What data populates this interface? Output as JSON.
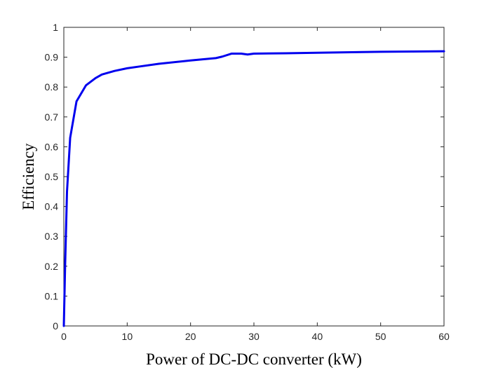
{
  "chart_data": {
    "type": "line",
    "title": "",
    "xlabel": "Power of DC-DC converter (kW)",
    "ylabel": "Efficiency",
    "xlim": [
      0,
      60
    ],
    "ylim": [
      0,
      1
    ],
    "xticks": [
      0,
      10,
      20,
      30,
      40,
      50,
      60
    ],
    "yticks": [
      0,
      0.1,
      0.2,
      0.3,
      0.4,
      0.5,
      0.6,
      0.7,
      0.8,
      0.9,
      1
    ],
    "xtick_labels": [
      "0",
      "10",
      "20",
      "30",
      "40",
      "50",
      "60"
    ],
    "ytick_labels": [
      "0",
      "0.1",
      "0.2",
      "0.3",
      "0.4",
      "0.5",
      "0.6",
      "0.7",
      "0.8",
      "0.9",
      "1"
    ],
    "grid": false,
    "legend": false,
    "series": [
      {
        "color": "#0000ee",
        "x": [
          0,
          0.2,
          0.5,
          1,
          2,
          3.5,
          5,
          6,
          8,
          10,
          12,
          15,
          20,
          24,
          25,
          26.5,
          28,
          29,
          30,
          35,
          40,
          50,
          60
        ],
        "y": [
          0,
          0.2,
          0.45,
          0.63,
          0.752,
          0.806,
          0.83,
          0.842,
          0.854,
          0.863,
          0.869,
          0.878,
          0.889,
          0.897,
          0.902,
          0.912,
          0.912,
          0.909,
          0.912,
          0.913,
          0.915,
          0.918,
          0.92
        ]
      }
    ]
  }
}
